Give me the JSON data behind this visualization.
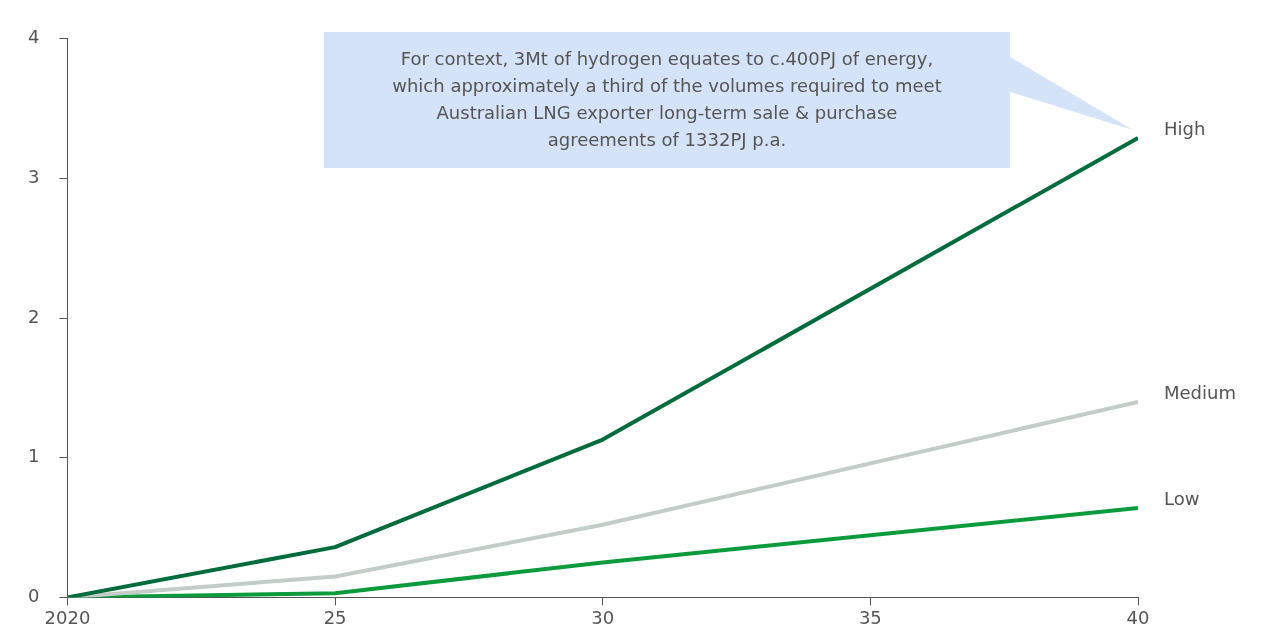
{
  "chart_data": {
    "type": "line",
    "x": [
      2020,
      2025,
      2030,
      2040
    ],
    "series": [
      {
        "name": "High",
        "color": "#006b3c",
        "values": [
          0,
          0.36,
          1.13,
          3.29
        ]
      },
      {
        "name": "Medium",
        "color": "#c4ccc7",
        "values": [
          0,
          0.15,
          0.52,
          1.4
        ]
      },
      {
        "name": "Low",
        "color": "#0b9b3c",
        "values": [
          0,
          0.03,
          0.25,
          0.64
        ]
      }
    ],
    "xlim": [
      2020,
      2040
    ],
    "xticks": [
      {
        "value": 2020,
        "label": "2020"
      },
      {
        "value": 2025,
        "label": "25"
      },
      {
        "value": 2030,
        "label": "30"
      },
      {
        "value": 2035,
        "label": "35"
      },
      {
        "value": 2040,
        "label": "40"
      }
    ],
    "ylim": [
      0,
      4
    ],
    "yticks": [
      0,
      1,
      2,
      3,
      4
    ],
    "grid": false,
    "legend": false,
    "marker": "none",
    "line_style": "solid",
    "annotations": [
      "For context, 3Mt of hydrogen equates to c.400PJ of energy,\nwhich approximately a third of the volumes required to meet\nAustralian LNG exporter long-term sale & purchase\nagreements of 1332PJ p.a."
    ]
  }
}
